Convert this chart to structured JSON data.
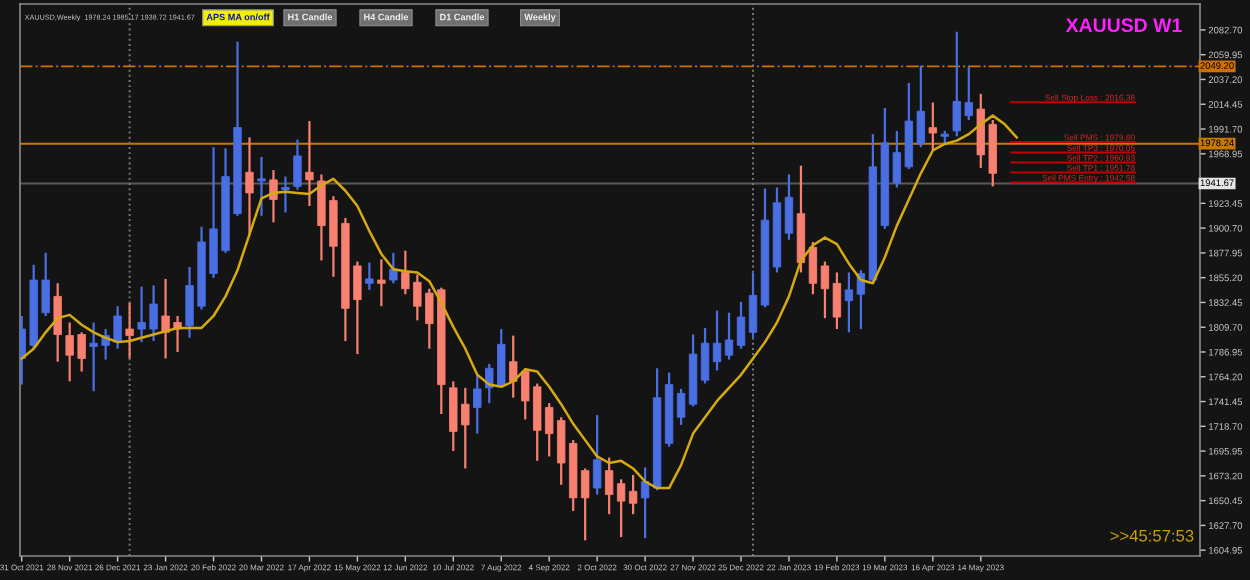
{
  "chart_data": {
    "type": "candlestick",
    "title": "XAUUSD W1",
    "x": [
      "2021-10-31",
      "2021-11-07",
      "2021-11-14",
      "2021-11-21",
      "2021-11-28",
      "2021-12-05",
      "2021-12-12",
      "2021-12-19",
      "2021-12-26",
      "2022-01-02",
      "2022-01-09",
      "2022-01-16",
      "2022-01-23",
      "2022-01-30",
      "2022-02-06",
      "2022-02-13",
      "2022-02-20",
      "2022-02-27",
      "2022-03-06",
      "2022-03-13",
      "2022-03-20",
      "2022-03-27",
      "2022-04-03",
      "2022-04-10",
      "2022-04-17",
      "2022-04-24",
      "2022-05-01",
      "2022-05-08",
      "2022-05-15",
      "2022-05-22",
      "2022-05-29",
      "2022-06-05",
      "2022-06-12",
      "2022-06-19",
      "2022-06-26",
      "2022-07-03",
      "2022-07-10",
      "2022-07-17",
      "2022-07-24",
      "2022-07-31",
      "2022-08-07",
      "2022-08-14",
      "2022-08-21",
      "2022-08-28",
      "2022-09-04",
      "2022-09-11",
      "2022-09-18",
      "2022-09-25",
      "2022-10-02",
      "2022-10-09",
      "2022-10-16",
      "2022-10-23",
      "2022-10-30",
      "2022-11-06",
      "2022-11-13",
      "2022-11-20",
      "2022-11-27",
      "2022-12-04",
      "2022-12-11",
      "2022-12-18",
      "2022-12-25",
      "2023-01-01",
      "2023-01-08",
      "2023-01-15",
      "2023-01-22",
      "2023-01-29",
      "2023-02-05",
      "2023-02-12",
      "2023-02-19",
      "2023-02-26",
      "2023-03-05",
      "2023-03-12",
      "2023-03-19",
      "2023-03-26",
      "2023-04-02",
      "2023-04-09",
      "2023-04-16",
      "2023-04-23",
      "2023-04-30",
      "2023-05-07",
      "2023-05-14",
      "2023-05-21"
    ],
    "ohlc": [
      [
        1781,
        1820,
        1757,
        1808
      ],
      [
        1793,
        1867,
        1790,
        1853
      ],
      [
        1823,
        1878,
        1820,
        1853
      ],
      [
        1838,
        1850,
        1778,
        1803
      ],
      [
        1802,
        1814,
        1760,
        1784
      ],
      [
        1803,
        1805,
        1769,
        1781
      ],
      [
        1792,
        1814,
        1751,
        1795
      ],
      [
        1793,
        1808,
        1780,
        1802
      ],
      [
        1796,
        1829,
        1790,
        1820
      ],
      [
        1808,
        1832,
        1781,
        1802
      ],
      [
        1808,
        1847,
        1796,
        1814
      ],
      [
        1808,
        1848,
        1797,
        1831
      ],
      [
        1820,
        1854,
        1781,
        1805
      ],
      [
        1814,
        1820,
        1787,
        1808
      ],
      [
        1811,
        1865,
        1800,
        1848
      ],
      [
        1829,
        1902,
        1826,
        1888
      ],
      [
        1859,
        1975,
        1855,
        1900
      ],
      [
        1880,
        1974,
        1878,
        1948
      ],
      [
        1914,
        2072,
        1912,
        1993
      ],
      [
        1952,
        1984,
        1894,
        1933
      ],
      [
        1944,
        1966,
        1912,
        1946
      ],
      [
        1945,
        1954,
        1906,
        1927
      ],
      [
        1936,
        1948,
        1915,
        1938
      ],
      [
        1939,
        1982,
        1936,
        1967
      ],
      [
        1952,
        1999,
        1921,
        1945
      ],
      [
        1944,
        1950,
        1871,
        1903
      ],
      [
        1926,
        1930,
        1856,
        1884
      ],
      [
        1905,
        1910,
        1797,
        1827
      ],
      [
        1866,
        1870,
        1785,
        1835
      ],
      [
        1850,
        1869,
        1844,
        1854
      ],
      [
        1853,
        1872,
        1829,
        1850
      ],
      [
        1853,
        1878,
        1850,
        1863
      ],
      [
        1860,
        1880,
        1840,
        1845
      ],
      [
        1851,
        1858,
        1816,
        1829
      ],
      [
        1841,
        1845,
        1790,
        1813
      ],
      [
        1844,
        1846,
        1730,
        1757
      ],
      [
        1754,
        1760,
        1696,
        1714
      ],
      [
        1739,
        1754,
        1680,
        1720
      ],
      [
        1736,
        1766,
        1712,
        1753
      ],
      [
        1754,
        1776,
        1740,
        1772
      ],
      [
        1757,
        1808,
        1755,
        1794
      ],
      [
        1778,
        1802,
        1745,
        1760
      ],
      [
        1769,
        1772,
        1725,
        1742
      ],
      [
        1755,
        1758,
        1687,
        1715
      ],
      [
        1736,
        1740,
        1691,
        1712
      ],
      [
        1724,
        1727,
        1665,
        1685
      ],
      [
        1703,
        1706,
        1641,
        1653
      ],
      [
        1678,
        1680,
        1614,
        1653
      ],
      [
        1662,
        1729,
        1656,
        1688
      ],
      [
        1678,
        1690,
        1638,
        1656
      ],
      [
        1666,
        1670,
        1617,
        1650
      ],
      [
        1659,
        1674,
        1638,
        1648
      ],
      [
        1653,
        1681,
        1616,
        1668
      ],
      [
        1662,
        1772,
        1660,
        1745
      ],
      [
        1703,
        1768,
        1700,
        1757
      ],
      [
        1727,
        1753,
        1720,
        1749
      ],
      [
        1739,
        1803,
        1737,
        1785
      ],
      [
        1761,
        1809,
        1758,
        1795
      ],
      [
        1778,
        1825,
        1770,
        1795
      ],
      [
        1784,
        1823,
        1780,
        1798
      ],
      [
        1793,
        1833,
        1790,
        1819
      ],
      [
        1805,
        1860,
        1800,
        1839
      ],
      [
        1830,
        1937,
        1828,
        1908
      ],
      [
        1865,
        1938,
        1860,
        1924
      ],
      [
        1896,
        1950,
        1890,
        1929
      ],
      [
        1914,
        1958,
        1860,
        1869
      ],
      [
        1883,
        1888,
        1840,
        1850
      ],
      [
        1866,
        1870,
        1818,
        1845
      ],
      [
        1850,
        1860,
        1808,
        1819
      ],
      [
        1834,
        1860,
        1805,
        1844
      ],
      [
        1840,
        1862,
        1808,
        1859
      ],
      [
        1853,
        1987,
        1850,
        1957
      ],
      [
        1903,
        2011,
        1900,
        1979
      ],
      [
        1942,
        1990,
        1938,
        1970
      ],
      [
        1957,
        2034,
        1955,
        1999
      ],
      [
        1978,
        2050,
        1975,
        2008
      ],
      [
        1993,
        2016,
        1972,
        1988
      ],
      [
        1985,
        1990,
        1978,
        1987
      ],
      [
        1990,
        2081,
        1985,
        2017
      ],
      [
        2004,
        2049,
        2000,
        2016
      ],
      [
        2010,
        2024,
        1956,
        1968
      ],
      [
        1996,
        2000,
        1939,
        1951
      ]
    ],
    "colors": [
      "#4a6fe3",
      "#4a6fe3",
      "#4a6fe3",
      "#f88070",
      "#f88070",
      "#f88070",
      "#4a6fe3",
      "#4a6fe3",
      "#4a6fe3",
      "#f88070",
      "#4a6fe3",
      "#4a6fe3",
      "#f88070",
      "#f88070",
      "#4a6fe3",
      "#4a6fe3",
      "#4a6fe3",
      "#4a6fe3",
      "#4a6fe3",
      "#f88070",
      "#4a6fe3",
      "#f88070",
      "#4a6fe3",
      "#4a6fe3",
      "#f88070",
      "#f88070",
      "#f88070",
      "#f88070",
      "#f88070",
      "#4a6fe3",
      "#f88070",
      "#4a6fe3",
      "#f88070",
      "#f88070",
      "#f88070",
      "#f88070",
      "#f88070",
      "#f88070",
      "#4a6fe3",
      "#4a6fe3",
      "#4a6fe3",
      "#f88070",
      "#f88070",
      "#f88070",
      "#f88070",
      "#f88070",
      "#f88070",
      "#f88070",
      "#4a6fe3",
      "#f88070",
      "#f88070",
      "#f88070",
      "#4a6fe3",
      "#4a6fe3",
      "#4a6fe3",
      "#4a6fe3",
      "#4a6fe3",
      "#4a6fe3",
      "#4a6fe3",
      "#4a6fe3",
      "#4a6fe3",
      "#4a6fe3",
      "#4a6fe3",
      "#4a6fe3",
      "#4a6fe3",
      "#f88070",
      "#f88070",
      "#f88070",
      "#f88070",
      "#4a6fe3",
      "#4a6fe3",
      "#4a6fe3",
      "#4a6fe3",
      "#4a6fe3",
      "#4a6fe3",
      "#4a6fe3",
      "#f88070",
      "#4a6fe3",
      "#4a6fe3",
      "#4a6fe3",
      "#f88070",
      "#f88070"
    ],
    "series": [
      {
        "type": "line",
        "color": "#d4aa10",
        "x": [
          "2021-10-31",
          "2021-11-07",
          "2021-11-14",
          "2021-11-21",
          "2021-11-28",
          "2021-12-05",
          "2021-12-12",
          "2021-12-19",
          "2021-12-26",
          "2022-01-02",
          "2022-01-09",
          "2022-01-16",
          "2022-01-23",
          "2022-01-30",
          "2022-02-06",
          "2022-02-13",
          "2022-02-20",
          "2022-02-27",
          "2022-03-06",
          "2022-03-13",
          "2022-03-20",
          "2022-03-27",
          "2022-04-03",
          "2022-04-10",
          "2022-04-17",
          "2022-04-24",
          "2022-05-01",
          "2022-05-08",
          "2022-05-15",
          "2022-05-22",
          "2022-05-29",
          "2022-06-05",
          "2022-06-12",
          "2022-06-19",
          "2022-06-26",
          "2022-07-03",
          "2022-07-10",
          "2022-07-17",
          "2022-07-24",
          "2022-07-31",
          "2022-08-07",
          "2022-08-14",
          "2022-08-21",
          "2022-08-28",
          "2022-09-04",
          "2022-09-11",
          "2022-09-18",
          "2022-09-25",
          "2022-10-02",
          "2022-10-09",
          "2022-10-16",
          "2022-10-23",
          "2022-10-30",
          "2022-11-06",
          "2022-11-13",
          "2022-11-20",
          "2022-11-27",
          "2022-12-04",
          "2022-12-11",
          "2022-12-18",
          "2022-12-25",
          "2023-01-01",
          "2023-01-08",
          "2023-01-15",
          "2023-01-22",
          "2023-01-29",
          "2023-02-05",
          "2023-02-12",
          "2023-02-19",
          "2023-02-26",
          "2023-03-05",
          "2023-03-12",
          "2023-03-19",
          "2023-03-26",
          "2023-04-02",
          "2023-04-09",
          "2023-04-16",
          "2023-04-23",
          "2023-04-30",
          "2023-05-07",
          "2023-05-14",
          "2023-05-21",
          "2023-05-28",
          "2023-06-04"
        ],
        "values": [
          1781,
          1790,
          1805,
          1818,
          1821,
          1812,
          1805,
          1800,
          1796,
          1797,
          1800,
          1803,
          1806,
          1809,
          1809,
          1809,
          1820,
          1838,
          1862,
          1895,
          1928,
          1933,
          1934,
          1933,
          1932,
          1940,
          1946,
          1935,
          1921,
          1898,
          1877,
          1863,
          1861,
          1860,
          1852,
          1832,
          1810,
          1790,
          1766,
          1757,
          1755,
          1760,
          1771,
          1769,
          1755,
          1739,
          1721,
          1706,
          1691,
          1685,
          1687,
          1680,
          1668,
          1662,
          1662,
          1683,
          1712,
          1727,
          1742,
          1754,
          1766,
          1781,
          1796,
          1814,
          1838,
          1871,
          1885,
          1892,
          1886,
          1868,
          1853,
          1850,
          1874,
          1903,
          1927,
          1951,
          1972,
          1978,
          1981,
          1987,
          1996,
          2004,
          1996,
          1984
        ]
      }
    ],
    "xlim": [
      "2021-10-30",
      "2023-09-19"
    ],
    "ylim": [
      1599.6,
      2106.5
    ],
    "yticks": [
      {
        "value": 1604.95,
        "label": "1604.95"
      },
      {
        "value": 1627.7,
        "label": "1627.70"
      },
      {
        "value": 1650.45,
        "label": "1650.45"
      },
      {
        "value": 1673.2,
        "label": "1673.20"
      },
      {
        "value": 1695.95,
        "label": "1695.95"
      },
      {
        "value": 1718.7,
        "label": "1718.70"
      },
      {
        "value": 1741.45,
        "label": "1741.45"
      },
      {
        "value": 1764.2,
        "label": "1764.20"
      },
      {
        "value": 1786.95,
        "label": "1786.95"
      },
      {
        "value": 1809.7,
        "label": "1809.70"
      },
      {
        "value": 1832.45,
        "label": "1832.45"
      },
      {
        "value": 1855.2,
        "label": "1855.20"
      },
      {
        "value": 1877.95,
        "label": "1877.95"
      },
      {
        "value": 1900.7,
        "label": "1900.70"
      },
      {
        "value": 1923.45,
        "label": "1923.45"
      },
      {
        "value": 1946.2,
        "label": null
      },
      {
        "value": 1968.95,
        "label": "1968.95"
      },
      {
        "value": 1991.7,
        "label": "1991.70"
      },
      {
        "value": 2014.45,
        "label": "2014.45"
      },
      {
        "value": 2037.2,
        "label": "2037.20"
      },
      {
        "value": 2059.95,
        "label": "2059.95"
      },
      {
        "value": 2082.7,
        "label": "2082.70"
      }
    ],
    "xticks": [
      {
        "value": "2021-10-31",
        "label": "31 Oct 2021"
      },
      {
        "value": "2021-11-28",
        "label": "28 Nov 2021"
      },
      {
        "value": "2021-12-26",
        "label": "26 Dec 2021"
      },
      {
        "value": "2022-01-23",
        "label": "23 Jan 2022"
      },
      {
        "value": "2022-02-20",
        "label": "20 Feb 2022"
      },
      {
        "value": "2022-03-20",
        "label": "20 Mar 2022"
      },
      {
        "value": "2022-04-17",
        "label": "17 Apr 2022"
      },
      {
        "value": "2022-05-15",
        "label": "15 May 2022"
      },
      {
        "value": "2022-06-12",
        "label": "12 Jun 2022"
      },
      {
        "value": "2022-07-10",
        "label": "10 Jul 2022"
      },
      {
        "value": "2022-08-07",
        "label": "7 Aug 2022"
      },
      {
        "value": "2022-09-04",
        "label": "4 Sep 2022"
      },
      {
        "value": "2022-10-02",
        "label": "2 Oct 2022"
      },
      {
        "value": "2022-10-30",
        "label": "30 Oct 2022"
      },
      {
        "value": "2022-11-27",
        "label": "27 Nov 2022"
      },
      {
        "value": "2022-12-25",
        "label": "25 Dec 2022"
      },
      {
        "value": "2023-01-22",
        "label": "22 Jan 2023"
      },
      {
        "value": "2023-02-19",
        "label": "19 Feb 2023"
      },
      {
        "value": "2023-03-19",
        "label": "19 Mar 2023"
      },
      {
        "value": "2023-04-16",
        "label": "16 Apr 2023"
      },
      {
        "value": "2023-05-14",
        "label": "14 May 2023"
      }
    ],
    "ref_lines": [
      {
        "axis": "y",
        "value": 2049.2,
        "label": "2049.20",
        "color": "#d07000",
        "line_style": "dashdot"
      },
      {
        "axis": "y",
        "value": 1978.24,
        "label": "1978.24",
        "color": "#c87800",
        "line_style": "solid"
      },
      {
        "axis": "y",
        "value": 1941.67,
        "label": "1941.67",
        "color": "#5a5a5a",
        "line_style": "solid"
      },
      {
        "axis": "y",
        "value": 2016.38,
        "label": "Sell Stop Loss : 2016.38",
        "color": "#c00000",
        "line_style": "solid"
      },
      {
        "axis": "y",
        "value": 1979.8,
        "label": "Sell PMS : 1979.80",
        "color": "#c00000",
        "line_style": "solid"
      },
      {
        "axis": "y",
        "value": 1970.05,
        "label": "Sell TP3 : 1970.05",
        "color": "#c00000",
        "line_style": "solid"
      },
      {
        "axis": "y",
        "value": 1960.93,
        "label": "Sell TP2 : 1960.93",
        "color": "#c00000",
        "line_style": "solid"
      },
      {
        "axis": "y",
        "value": 1951.78,
        "label": "Sell TP1 : 1951.78",
        "color": "#c00000",
        "line_style": "solid"
      },
      {
        "axis": "y",
        "value": 1942.58,
        "label": "Sell PMS Entry : 1942.58",
        "color": "#c00000",
        "line_style": "solid"
      },
      {
        "axis": "x",
        "value": "2022-01-02",
        "color": "#7a7a7a",
        "line_style": "dotted"
      },
      {
        "axis": "x",
        "value": "2023-01-01",
        "color": "#7a7a7a",
        "line_style": "dotted"
      }
    ],
    "annotations": [
      "XAUUSD,Weekly  1978.24 1985.17 1938.72 1941.67",
      "APS MA on/off",
      "H1 Candle",
      "H4 Candle",
      "D1 Candle",
      "Weekly",
      ">>45:57:53"
    ],
    "grid": false
  }
}
